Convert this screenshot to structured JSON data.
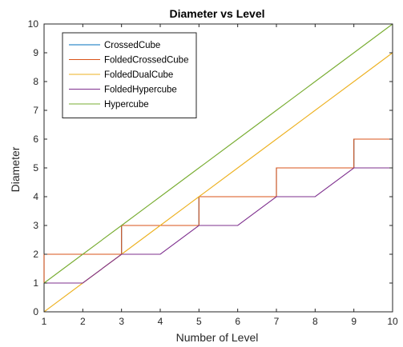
{
  "chart_data": {
    "type": "line",
    "title": "Diameter vs Level",
    "xlabel": "Number of Level",
    "ylabel": "Diameter",
    "xlim": [
      1,
      10
    ],
    "ylim": [
      0,
      10
    ],
    "xticks": [
      1,
      2,
      3,
      4,
      5,
      6,
      7,
      8,
      9,
      10
    ],
    "yticks": [
      0,
      1,
      2,
      3,
      4,
      5,
      6,
      7,
      8,
      9,
      10
    ],
    "grid": false,
    "legend_position": "top-left",
    "x": [
      1,
      2,
      3,
      4,
      5,
      6,
      7,
      8,
      9,
      10
    ],
    "series": [
      {
        "name": "CrossedCube",
        "color": "#0072BD",
        "values": [
          1,
          2,
          2,
          3,
          3,
          4,
          4,
          5,
          5,
          6
        ],
        "stepped": true
      },
      {
        "name": "FoldedCrossedCube",
        "color": "#D95319",
        "values": [
          1,
          2,
          2,
          3,
          3,
          4,
          4,
          5,
          5,
          6
        ],
        "stepped": true
      },
      {
        "name": "FoldedDualCube",
        "color": "#EDB120",
        "values": [
          0,
          1,
          2,
          3,
          4,
          5,
          6,
          7,
          8,
          9
        ],
        "stepped": false
      },
      {
        "name": "FoldedHypercube",
        "color": "#7E2F8E",
        "values": [
          1,
          1,
          2,
          2,
          3,
          3,
          4,
          4,
          5,
          5
        ],
        "stepped": false
      },
      {
        "name": "Hypercube",
        "color": "#77AC30",
        "values": [
          1,
          2,
          3,
          4,
          5,
          6,
          7,
          8,
          9,
          10
        ],
        "stepped": false
      }
    ]
  }
}
